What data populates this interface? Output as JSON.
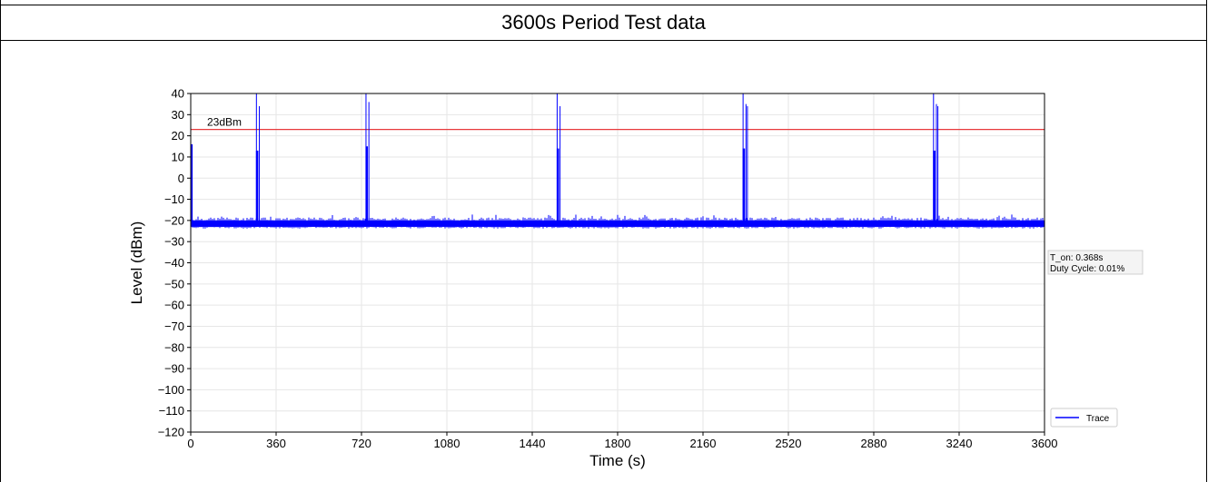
{
  "header": {
    "title": "3600s Period Test data"
  },
  "chart_data": {
    "type": "line",
    "xlabel": "Time (s)",
    "ylabel": "Level (dBm)",
    "xlim": [
      0,
      3600
    ],
    "ylim": [
      -120,
      40
    ],
    "x_ticks": [
      0,
      360,
      720,
      1080,
      1440,
      1800,
      2160,
      2520,
      2880,
      3240,
      3600
    ],
    "y_ticks": [
      40,
      30,
      20,
      10,
      0,
      -10,
      -20,
      -30,
      -40,
      -50,
      -60,
      -70,
      -80,
      -90,
      -100,
      -110,
      -120
    ],
    "grid": true,
    "noise_floor_dbm": [
      -23,
      -18
    ],
    "threshold": {
      "label": "23dBm",
      "value": 23,
      "color": "#e8393b"
    },
    "bursts": [
      {
        "t": 0,
        "peaks": [
          17,
          16
        ]
      },
      {
        "t": 277,
        "peaks": [
          40,
          13,
          34
        ]
      },
      {
        "t": 739,
        "peaks": [
          40,
          15,
          36
        ]
      },
      {
        "t": 1545,
        "peaks": [
          40,
          14,
          34
        ]
      },
      {
        "t": 2329,
        "peaks": [
          40,
          14,
          35,
          34
        ]
      },
      {
        "t": 3132,
        "peaks": [
          40,
          13,
          35,
          34
        ]
      }
    ],
    "series": [
      {
        "name": "Trace",
        "color": "#0000ff"
      }
    ],
    "legend": {
      "position": "bottom-right"
    },
    "annotation": {
      "line1": "T_on: 0.368s",
      "line2": "Duty Cycle: 0.01%"
    }
  }
}
